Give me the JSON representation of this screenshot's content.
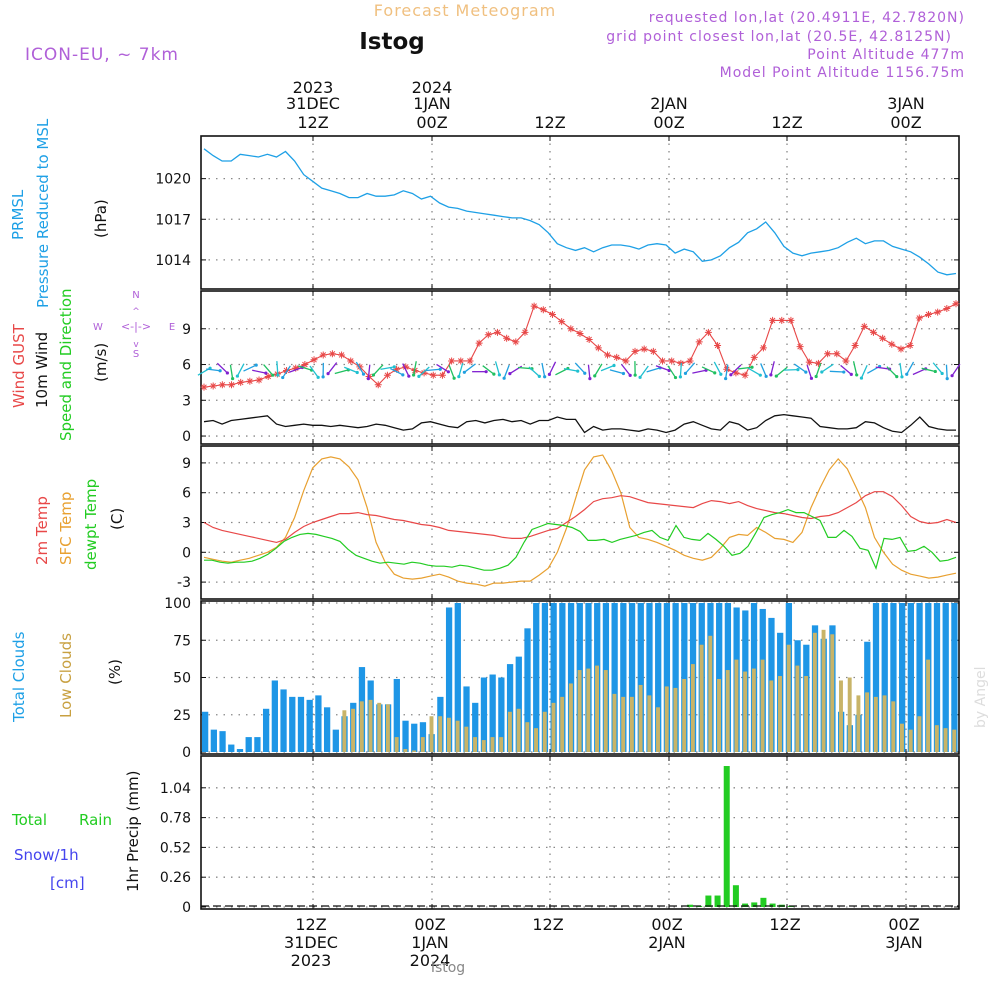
{
  "header": {
    "title": "Forecast Meteogram",
    "location": "Istog",
    "model": "ICON-EU, ~ 7km",
    "requested": "requested lon,lat (20.4911E, 42.7820N)",
    "gridpoint": "grid point closest lon,lat (20.5E, 42.8125N)",
    "point_alt": "Point Altitude 477m",
    "model_alt": "Model Point Altitude 1156.75m",
    "watermark": "by Angel",
    "footer": "Istog"
  },
  "time_axis": {
    "top_labels": [
      [
        "2023",
        "31DEC",
        "12Z"
      ],
      [
        "2024",
        "1JAN",
        "00Z"
      ],
      [
        "",
        "",
        "12Z"
      ],
      [
        "",
        "2JAN",
        "00Z"
      ],
      [
        "",
        "",
        "12Z"
      ],
      [
        "",
        "3JAN",
        "00Z"
      ]
    ],
    "bottom_labels": [
      [
        "12Z",
        "31DEC",
        "2023"
      ],
      [
        "00Z",
        "1JAN",
        "2024"
      ],
      [
        "12Z",
        "",
        ""
      ],
      [
        "00Z",
        "2JAN",
        ""
      ],
      [
        "12Z",
        "",
        ""
      ],
      [
        "00Z",
        "3JAN",
        ""
      ]
    ]
  },
  "panel_labels": {
    "prmsl": [
      "PRMSL",
      "Pressure Reduced to MSL",
      "(hPa)"
    ],
    "wind": [
      "Wind GUST",
      "10m Wind",
      "Speed and Direction",
      "(m/s)"
    ],
    "compass": [
      "N",
      "S",
      "W",
      "E"
    ],
    "temp": [
      "2m Temp",
      "SFC Temp",
      "dewpt Temp",
      "(C)"
    ],
    "clouds": [
      "Total Clouds",
      "Low Clouds",
      "(%)"
    ],
    "precip": [
      "Total",
      "Rain",
      "Snow/1h",
      "[cm]",
      "1hr Precip (mm)"
    ]
  },
  "colors": {
    "pressure": "#1ea0e6",
    "gust": "#e84848",
    "wind": "#111111",
    "temp2m": "#e84848",
    "sfc": "#e8a030",
    "dewpt": "#22cc22",
    "total_clouds": "#1e96e6",
    "low_clouds": "#c8b468",
    "rain": "#22cc22",
    "snow": "#4444ee",
    "header_purple": "#b060d8",
    "title_orange": "#f0c080"
  },
  "chart_data": [
    {
      "type": "line",
      "name": "prmsl",
      "ylim": [
        1012,
        1023
      ],
      "yticks": [
        1014,
        1017,
        1020
      ],
      "series": [
        {
          "values": [
            1022.2,
            1021.7,
            1021.3,
            1021.3,
            1021.8,
            1021.7,
            1021.6,
            1021.8,
            1021.6,
            1022.0,
            1021.3,
            1020.3,
            1019.8,
            1019.3,
            1019.1,
            1018.9,
            1018.6,
            1018.6,
            1018.9,
            1018.7,
            1018.7,
            1018.8,
            1019.1,
            1018.9,
            1018.5,
            1018.7,
            1018.2,
            1017.9,
            1017.8,
            1017.6,
            1017.5,
            1017.4,
            1017.3,
            1017.2,
            1017.1,
            1017.1,
            1016.9,
            1016.6,
            1016.0,
            1015.2,
            1014.9,
            1014.7,
            1014.9,
            1014.6,
            1014.9,
            1015.1,
            1015.1,
            1015.0,
            1014.8,
            1015.1,
            1015.2,
            1015.1,
            1014.5,
            1014.8,
            1014.6,
            1013.9,
            1014.0,
            1014.3,
            1014.9,
            1015.3,
            1016.0,
            1016.3,
            1016.8,
            1016.0,
            1015.0,
            1014.5,
            1014.3,
            1014.5,
            1014.6,
            1014.7,
            1014.9,
            1015.3,
            1015.6,
            1015.2,
            1015.4,
            1015.4,
            1015.0,
            1014.8,
            1014.6,
            1014.2,
            1013.7,
            1013.1,
            1012.9,
            1013.0
          ]
        }
      ]
    },
    {
      "type": "line",
      "name": "wind",
      "ylim": [
        -0.5,
        12
      ],
      "yticks": [
        0,
        3,
        6,
        9
      ],
      "series": [
        {
          "name": "Wind GUST",
          "values": [
            4.1,
            4.2,
            4.3,
            4.3,
            4.5,
            4.6,
            4.7,
            5.0,
            5.2,
            5.5,
            5.7,
            6.0,
            6.4,
            6.8,
            6.9,
            6.8,
            6.3,
            5.8,
            5.0,
            4.3,
            5.1,
            5.6,
            5.8,
            5.5,
            5.3,
            5.1,
            5.1,
            6.3,
            6.3,
            6.3,
            7.8,
            8.5,
            8.7,
            8.2,
            7.9,
            8.7,
            10.9,
            10.6,
            10.2,
            9.6,
            9.0,
            8.6,
            8.1,
            7.4,
            6.8,
            6.6,
            6.3,
            7.1,
            7.3,
            7.1,
            6.3,
            6.3,
            6.1,
            6.3,
            7.9,
            8.7,
            7.6,
            5.6,
            5.3,
            5.1,
            6.6,
            7.4,
            9.7,
            9.7,
            9.7,
            7.5,
            6.2,
            6.1,
            6.9,
            6.9,
            6.3,
            7.6,
            9.2,
            8.7,
            8.2,
            7.7,
            7.3,
            7.6,
            9.9,
            10.2,
            10.4,
            10.7,
            11.1
          ]
        },
        {
          "name": "10m Wind",
          "values": [
            1.2,
            1.3,
            1.0,
            1.3,
            1.4,
            1.5,
            1.6,
            1.7,
            1.0,
            0.8,
            0.9,
            1.0,
            0.9,
            0.9,
            0.8,
            0.9,
            0.8,
            0.7,
            0.8,
            1.0,
            0.9,
            0.7,
            0.5,
            0.6,
            1.1,
            1.2,
            1.0,
            0.8,
            0.7,
            1.2,
            1.3,
            1.1,
            1.3,
            1.4,
            1.2,
            1.3,
            1.0,
            1.3,
            1.3,
            1.6,
            1.4,
            1.4,
            0.3,
            0.8,
            0.5,
            0.6,
            0.6,
            0.5,
            0.4,
            0.6,
            0.5,
            0.3,
            0.5,
            1.0,
            1.2,
            0.9,
            0.6,
            0.5,
            1.2,
            1.0,
            0.5,
            0.7,
            1.3,
            1.7,
            1.8,
            1.7,
            1.6,
            1.5,
            0.8,
            0.7,
            0.6,
            0.6,
            0.7,
            1.2,
            1.1,
            0.7,
            0.4,
            0.3,
            0.9,
            1.6,
            0.8,
            0.6,
            0.5,
            0.5
          ]
        }
      ],
      "wind_barbs": {
        "count": 83,
        "first": "10.0",
        "directions_deg": "mostly 0-150 (northerly to easterly)"
      }
    },
    {
      "type": "line",
      "name": "temperature",
      "ylim": [
        -4.5,
        10.5
      ],
      "yticks": [
        -3,
        0,
        3,
        6,
        9
      ],
      "series": [
        {
          "name": "2m Temp",
          "values": [
            3.0,
            2.5,
            2.2,
            2.0,
            1.8,
            1.6,
            1.4,
            1.2,
            1.0,
            1.3,
            2.0,
            2.6,
            3.0,
            3.3,
            3.6,
            3.9,
            3.9,
            4.0,
            3.8,
            3.7,
            3.5,
            3.3,
            3.2,
            3.0,
            2.8,
            2.7,
            2.5,
            2.2,
            2.1,
            2.0,
            1.9,
            1.8,
            1.7,
            1.5,
            1.4,
            1.4,
            1.6,
            1.9,
            2.2,
            2.4,
            3.0,
            3.6,
            4.3,
            5.1,
            5.4,
            5.5,
            5.7,
            5.6,
            5.3,
            5.0,
            4.9,
            4.8,
            4.7,
            4.6,
            4.5,
            4.9,
            5.2,
            5.1,
            4.9,
            5.1,
            4.7,
            4.4,
            4.2,
            4.0,
            3.9,
            3.7,
            3.5,
            3.4,
            3.6,
            3.7,
            4.0,
            4.5,
            5.0,
            5.7,
            6.1,
            6.1,
            5.6,
            4.7,
            3.6,
            3.1,
            2.9,
            3.0,
            3.3,
            3.0
          ]
        },
        {
          "name": "SFC Temp",
          "values": [
            -0.5,
            -0.7,
            -0.9,
            -1.0,
            -0.8,
            -0.6,
            -0.3,
            0.0,
            0.5,
            1.5,
            3.5,
            6.2,
            8.5,
            9.4,
            9.6,
            9.4,
            8.6,
            7.3,
            4.5,
            1.0,
            -1.0,
            -2.2,
            -2.6,
            -2.7,
            -2.6,
            -2.4,
            -2.2,
            -2.5,
            -2.9,
            -3.1,
            -3.2,
            -3.4,
            -3.1,
            -3.1,
            -3.0,
            -2.9,
            -2.9,
            -2.3,
            -1.6,
            0.0,
            2.4,
            5.4,
            8.3,
            9.6,
            9.8,
            8.2,
            6.0,
            2.5,
            1.5,
            1.3,
            1.0,
            0.6,
            0.2,
            -0.3,
            -0.6,
            -0.8,
            -0.5,
            0.4,
            1.5,
            1.8,
            1.7,
            2.5,
            2.0,
            1.4,
            1.3,
            1.0,
            2.0,
            4.5,
            6.5,
            8.3,
            9.4,
            8.4,
            6.5,
            4.5,
            1.5,
            0.0,
            -1.2,
            -1.8,
            -2.2,
            -2.4,
            -2.6,
            -2.5,
            -2.3,
            -2.1
          ]
        },
        {
          "name": "dewpt Temp",
          "values": [
            -0.8,
            -0.8,
            -1.0,
            -1.1,
            -1.0,
            -1.0,
            -0.9,
            -0.6,
            -0.2,
            0.4,
            1.1,
            1.5,
            1.8,
            1.9,
            1.8,
            1.6,
            1.4,
            1.1,
            0.3,
            -0.3,
            -0.6,
            -0.9,
            -1.1,
            -1.0,
            -1.1,
            -1.2,
            -1.0,
            -1.1,
            -1.3,
            -1.4,
            -1.4,
            -1.5,
            -1.3,
            -1.4,
            -1.6,
            -1.8,
            -1.8,
            -1.6,
            -1.3,
            -0.5,
            1.0,
            2.3,
            2.6,
            2.9,
            2.8,
            2.7,
            2.5,
            2.1,
            1.2,
            1.2,
            1.3,
            1.0,
            1.3,
            1.5,
            1.7,
            2.0,
            2.2,
            1.5,
            1.2,
            2.7,
            1.5,
            1.3,
            1.2,
            1.9,
            1.3,
            0.6,
            -0.3,
            -0.1,
            0.6,
            2.0,
            3.5,
            3.8,
            4.0,
            4.3,
            4.0,
            4.0,
            3.6,
            3.2,
            1.5,
            1.5,
            2.2,
            1.6,
            0.4,
            0.2,
            -1.6,
            1.4,
            1.3,
            1.5,
            0.1,
            0.2,
            0.6,
            0.0,
            -0.9,
            -0.8,
            -0.5
          ]
        }
      ]
    },
    {
      "type": "bar",
      "name": "clouds",
      "ylim": [
        0,
        100
      ],
      "yticks": [
        0,
        25,
        50,
        75,
        100
      ],
      "series": [
        {
          "name": "Total Clouds",
          "values": [
            27,
            15,
            14,
            5,
            2,
            10,
            10,
            29,
            48,
            42,
            37,
            37,
            35,
            38,
            30,
            15,
            24,
            33,
            57,
            48,
            32,
            32,
            49,
            21,
            19,
            20,
            12,
            37,
            97,
            100,
            44,
            33,
            50,
            52,
            50,
            59,
            64,
            83,
            100,
            100,
            100,
            100,
            100,
            100,
            100,
            100,
            100,
            100,
            100,
            100,
            100,
            100,
            100,
            100,
            100,
            100,
            100,
            100,
            100,
            100,
            100,
            97,
            95,
            100,
            96,
            90,
            80,
            100,
            75,
            72,
            85,
            76,
            85,
            27,
            18,
            25,
            74,
            100,
            100,
            100,
            100,
            100,
            100,
            100,
            100,
            100,
            100
          ]
        },
        {
          "name": "Low Clouds",
          "values": [
            0,
            0,
            0,
            0,
            0,
            0,
            0,
            0,
            28,
            29,
            34,
            35,
            33,
            32,
            10,
            2,
            1,
            10,
            24,
            24,
            23,
            21,
            17,
            10,
            8,
            10,
            10,
            27,
            29,
            20,
            16,
            27,
            33,
            37,
            46,
            55,
            56,
            58,
            55,
            39,
            37,
            37,
            45,
            38,
            30,
            44,
            43,
            49,
            59,
            72,
            78,
            49,
            55,
            62,
            54,
            56,
            62,
            48,
            51,
            72,
            58,
            51,
            80,
            82,
            79,
            48,
            50,
            38,
            40,
            37,
            38,
            34,
            19,
            15,
            24,
            62,
            18,
            16,
            15,
            18,
            15,
            25,
            26
          ]
        }
      ]
    },
    {
      "type": "bar",
      "name": "precip",
      "ylim": [
        0,
        1.3
      ],
      "yticks": [
        0,
        0.26,
        0.52,
        0.78,
        1.04
      ],
      "series": [
        {
          "name": "Rain",
          "values": [
            0,
            0,
            0,
            0,
            0,
            0,
            0,
            0,
            0,
            0,
            0,
            0,
            0,
            0,
            0,
            0,
            0,
            0,
            0,
            0,
            0,
            0,
            0,
            0,
            0,
            0,
            0,
            0,
            0,
            0,
            0,
            0,
            0,
            0,
            0,
            0,
            0,
            0,
            0,
            0,
            0,
            0,
            0,
            0,
            0,
            0,
            0,
            0,
            0,
            0,
            0,
            0,
            0,
            0.02,
            0.01,
            0.1,
            0.1,
            1.23,
            0.19,
            0.03,
            0.04,
            0.08,
            0.03,
            0.02,
            0.01,
            0,
            0,
            0,
            0,
            0,
            0,
            0,
            0,
            0,
            0,
            0,
            0,
            0,
            0,
            0,
            0,
            0,
            0
          ]
        },
        {
          "name": "Snow",
          "values": []
        }
      ]
    }
  ]
}
